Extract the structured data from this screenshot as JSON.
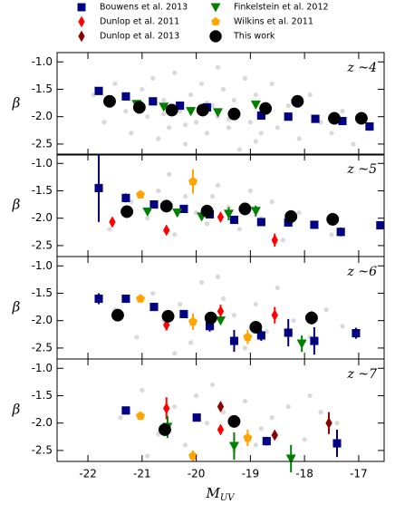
{
  "legend": [
    {
      "name": "Bouwens et al. 2013",
      "color": "#000080",
      "marker": "square"
    },
    {
      "name": "Dunlop et al. 2011",
      "color": "#ff0000",
      "marker": "diamond"
    },
    {
      "name": "Dunlop et al. 2013",
      "color": "#8b0000",
      "marker": "diamond"
    },
    {
      "name": "Finkelstein et al. 2012",
      "color": "#008000",
      "marker": "triangle_down"
    },
    {
      "name": "Wilkins et al. 2011",
      "color": "#ffa500",
      "marker": "pentagon"
    },
    {
      "name": "This work",
      "color": "#000000",
      "marker": "circle"
    }
  ],
  "xlabel": "M",
  "xlabel_sub": "UV",
  "chart_data": [
    {
      "type": "scatter",
      "annotation": "z ~4",
      "ylabel": "β",
      "xlim": [
        -22.57,
        -16.53
      ],
      "ylim": [
        -2.7,
        -0.83
      ],
      "yticks": [
        {
          "value": -1.0,
          "label": "-1.0"
        },
        {
          "value": -1.5,
          "label": "-1.5"
        },
        {
          "value": -2.0,
          "label": "-2.0"
        },
        {
          "value": -2.5,
          "label": "-2.5"
        }
      ],
      "background": {
        "color": "#aaaaaa",
        "x": [
          -21.9,
          -21.7,
          -21.5,
          -21.3,
          -21.2,
          -21.0,
          -20.9,
          -20.8,
          -20.7,
          -20.6,
          -20.5,
          -20.4,
          -20.3,
          -20.2,
          -20.1,
          -20.0,
          -19.9,
          -19.8,
          -19.7,
          -19.6,
          -19.5,
          -19.4,
          -19.3,
          -19.2,
          -19.1,
          -19.0,
          -18.9,
          -18.8,
          -18.7,
          -18.6,
          -18.5,
          -18.3,
          -18.1,
          -17.9,
          -17.7,
          -17.5,
          -17.3,
          -17.1,
          -16.9,
          -20.6,
          -19.8,
          -19.4,
          -20.2,
          -18.9,
          -19.6
        ],
        "y": [
          -1.6,
          -2.1,
          -1.4,
          -1.9,
          -2.3,
          -1.5,
          -2.0,
          -1.3,
          -2.4,
          -1.7,
          -2.2,
          -1.2,
          -1.9,
          -2.5,
          -1.6,
          -2.1,
          -1.4,
          -2.3,
          -1.8,
          -2.0,
          -1.5,
          -2.2,
          -1.7,
          -2.6,
          -1.3,
          -2.1,
          -1.6,
          -2.3,
          -1.9,
          -1.4,
          -2.2,
          -1.8,
          -2.4,
          -1.6,
          -2.1,
          -2.3,
          -1.9,
          -2.5,
          -2.0,
          -1.95,
          -1.75,
          -2.05,
          -2.15,
          -2.45,
          -1.1
        ]
      },
      "series": [
        {
          "x": [
            -21.8,
            -21.3,
            -20.8,
            -20.3,
            -19.8,
            -19.3,
            -18.8,
            -18.3,
            -17.8,
            -17.3,
            -16.8
          ],
          "y": [
            -1.53,
            -1.63,
            -1.72,
            -1.8,
            -1.83,
            -1.95,
            -1.98,
            -2.0,
            -2.04,
            -2.08,
            -2.18
          ]
        },
        {
          "x": [],
          "y": []
        },
        {
          "x": [],
          "y": []
        },
        {
          "x": [
            -21.1,
            -20.6,
            -20.1,
            -19.6,
            -18.9
          ],
          "y": [
            -1.77,
            -1.82,
            -1.9,
            -1.92,
            -1.78
          ]
        },
        {
          "x": [],
          "y": []
        },
        {
          "x": [
            -21.6,
            -21.05,
            -20.45,
            -19.88,
            -19.3,
            -18.72,
            -18.13,
            -17.45,
            -16.95
          ],
          "y": [
            -1.72,
            -1.83,
            -1.88,
            -1.88,
            -1.95,
            -1.85,
            -1.72,
            -2.03,
            -2.03
          ]
        }
      ]
    },
    {
      "type": "scatter",
      "annotation": "z ~5",
      "ylabel": "β",
      "xlim": [
        -22.57,
        -16.53
      ],
      "ylim": [
        -2.7,
        -0.83
      ],
      "yticks": [
        {
          "value": -1.0,
          "label": "-1.0"
        },
        {
          "value": -1.5,
          "label": "-1.5"
        },
        {
          "value": -2.0,
          "label": "-2.0"
        },
        {
          "value": -2.5,
          "label": "-2.5"
        }
      ],
      "background": {
        "color": "#aaaaaa",
        "x": [
          -21.6,
          -21.2,
          -20.9,
          -20.7,
          -20.4,
          -20.2,
          -20.0,
          -19.8,
          -19.6,
          -19.4,
          -19.2,
          -19.0,
          -18.8,
          -18.6,
          -18.4,
          -18.1,
          -17.8,
          -17.5,
          -20.5,
          -19.7
        ],
        "y": [
          -2.2,
          -1.7,
          -2.0,
          -1.5,
          -2.3,
          -1.6,
          -1.9,
          -2.1,
          -1.4,
          -1.8,
          -2.2,
          -1.5,
          -2.0,
          -1.7,
          -2.4,
          -1.9,
          -2.1,
          -2.3,
          -1.2,
          -1.6
        ]
      },
      "series": [
        {
          "x": [
            -21.8,
            -21.3,
            -20.78,
            -20.23,
            -19.75,
            -19.3,
            -18.8,
            -18.3,
            -17.82,
            -17.33,
            -16.6
          ],
          "y": [
            -1.45,
            -1.63,
            -1.75,
            -1.83,
            -1.93,
            -2.03,
            -2.07,
            -2.08,
            -2.12,
            -2.25,
            -2.13
          ],
          "yerr": [
            0.62,
            0.08,
            0.04,
            0.04,
            0.04,
            0.05,
            0.05,
            0.05,
            0.06,
            0.08,
            0.05
          ]
        },
        {
          "x": [
            -21.55,
            -20.55,
            -19.55,
            -18.55
          ],
          "y": [
            -2.07,
            -2.22,
            -1.98,
            -2.4
          ],
          "yerr": [
            0.04,
            0.07,
            0.05,
            0.12
          ]
        },
        {
          "x": [],
          "y": []
        },
        {
          "x": [
            -20.9,
            -20.35,
            -19.9,
            -19.4,
            -18.9
          ],
          "y": [
            -1.88,
            -1.9,
            -1.97,
            -1.92,
            -1.87
          ],
          "yerr": [
            0.03,
            0.03,
            0.05,
            0.12,
            0.1
          ]
        },
        {
          "x": [
            -21.03,
            -20.06
          ],
          "y": [
            -1.57,
            -1.33
          ],
          "yerr": [
            0.05,
            0.22
          ]
        },
        {
          "x": [
            -21.28,
            -20.55,
            -19.8,
            -19.1,
            -18.25,
            -17.48
          ],
          "y": [
            -1.88,
            -1.78,
            -1.87,
            -1.83,
            -1.97,
            -2.02
          ],
          "yerr": [
            0.04,
            0.04,
            0.04,
            0.05,
            0.08,
            0.1
          ]
        }
      ]
    },
    {
      "type": "scatter",
      "annotation": "z ~6",
      "ylabel": "β",
      "xlim": [
        -22.57,
        -16.53
      ],
      "ylim": [
        -2.7,
        -0.83
      ],
      "yticks": [
        {
          "value": -1.0,
          "label": "-1.0"
        },
        {
          "value": -1.5,
          "label": "-1.5"
        },
        {
          "value": -2.0,
          "label": "-2.0"
        },
        {
          "value": -2.5,
          "label": "-2.5"
        }
      ],
      "background": {
        "color": "#aaaaaa",
        "x": [
          -21.5,
          -21.1,
          -20.8,
          -20.6,
          -20.3,
          -20.1,
          -19.9,
          -19.7,
          -19.5,
          -19.3,
          -19.1,
          -18.9,
          -18.7,
          -18.5,
          -18.2,
          -17.9,
          -17.6,
          -17.3,
          -20.4,
          -19.6
        ],
        "y": [
          -1.8,
          -2.3,
          -1.5,
          -2.0,
          -1.7,
          -2.4,
          -1.3,
          -2.1,
          -1.6,
          -1.9,
          -2.5,
          -1.7,
          -2.2,
          -1.4,
          -2.0,
          -2.3,
          -1.8,
          -2.1,
          -2.6,
          -1.2
        ]
      },
      "series": [
        {
          "x": [
            -21.8,
            -21.3,
            -20.78,
            -20.23,
            -19.75,
            -19.3,
            -18.8,
            -18.3,
            -17.82,
            -17.05
          ],
          "y": [
            -1.6,
            -1.6,
            -1.75,
            -1.88,
            -2.1,
            -2.37,
            -2.27,
            -2.22,
            -2.37,
            -2.23
          ],
          "yerr": [
            0.1,
            0.06,
            0.06,
            0.06,
            0.1,
            0.2,
            0.1,
            0.25,
            0.25,
            0.1
          ]
        },
        {
          "x": [
            -20.55,
            -19.55,
            -18.55
          ],
          "y": [
            -2.08,
            -1.83,
            -1.9
          ],
          "yerr": [
            0.1,
            0.12,
            0.15
          ]
        },
        {
          "x": [],
          "y": []
        },
        {
          "x": [
            -19.55,
            -18.05
          ],
          "y": [
            -2.0,
            -2.42
          ],
          "yerr": [
            0.05,
            0.15
          ]
        },
        {
          "x": [
            -21.03,
            -20.06,
            -19.05
          ],
          "y": [
            -1.6,
            -2.02,
            -2.3
          ],
          "yerr": [
            0.04,
            0.15,
            0.13
          ]
        },
        {
          "x": [
            -21.45,
            -20.52,
            -19.73,
            -18.9,
            -17.87
          ],
          "y": [
            -1.9,
            -1.92,
            -1.95,
            -2.12,
            -1.95
          ],
          "yerr": [
            0.04,
            0.08,
            0.08,
            0.1,
            0.12
          ]
        }
      ]
    },
    {
      "type": "scatter",
      "annotation": "z ~7",
      "ylabel": "β",
      "xlim": [
        -22.57,
        -16.53
      ],
      "ylim": [
        -2.7,
        -0.83
      ],
      "yticks": [
        {
          "value": -1.0,
          "label": "-1.0"
        },
        {
          "value": -1.5,
          "label": "-1.5"
        },
        {
          "value": -2.0,
          "label": "-2.0"
        },
        {
          "value": -2.5,
          "label": "-2.5"
        }
      ],
      "xticks": [
        -22,
        -21,
        -20,
        -19,
        -18,
        -17
      ],
      "background": {
        "color": "#aaaaaa",
        "x": [
          -21.4,
          -21.0,
          -20.7,
          -20.4,
          -20.2,
          -20.0,
          -19.8,
          -19.5,
          -19.3,
          -19.1,
          -18.8,
          -18.6,
          -18.3,
          -18.0,
          -17.7,
          -17.4,
          -20.9,
          -19.7,
          -18.9,
          -17.9
        ],
        "y": [
          -1.9,
          -1.4,
          -2.2,
          -1.7,
          -2.4,
          -1.5,
          -2.0,
          -1.8,
          -2.5,
          -1.6,
          -2.1,
          -1.9,
          -1.7,
          -2.3,
          -1.8,
          -2.0,
          -2.6,
          -1.3,
          -2.4,
          -1.5
        ]
      },
      "series": [
        {
          "x": [
            -21.3,
            -19.99,
            -18.7,
            -17.4
          ],
          "y": [
            -1.77,
            -1.9,
            -2.33,
            -2.37
          ],
          "yerr": [
            0.04,
            0.05,
            0.08,
            0.25
          ]
        },
        {
          "x": [
            -20.55,
            -19.55
          ],
          "y": [
            -1.73,
            -2.12
          ],
          "yerr": [
            0.2,
            0.08
          ]
        },
        {
          "x": [
            -19.55,
            -18.55,
            -17.55
          ],
          "y": [
            -1.7,
            -2.22,
            -2.0
          ],
          "yerr": [
            0.05,
            0.06,
            0.2
          ]
        },
        {
          "x": [
            -20.53,
            -19.3,
            -18.25
          ],
          "y": [
            -2.07,
            -2.42,
            -2.65
          ],
          "yerr": [
            0.2,
            0.25,
            0.25
          ]
        },
        {
          "x": [
            -21.03,
            -20.06,
            -19.05
          ],
          "y": [
            -1.87,
            -2.6,
            -2.27
          ],
          "yerr": [
            0.03,
            0.1,
            0.15
          ]
        },
        {
          "x": [
            -20.58,
            -19.3
          ],
          "y": [
            -2.12,
            -1.97
          ],
          "yerr": [
            0.05,
            0.1
          ]
        }
      ]
    }
  ]
}
